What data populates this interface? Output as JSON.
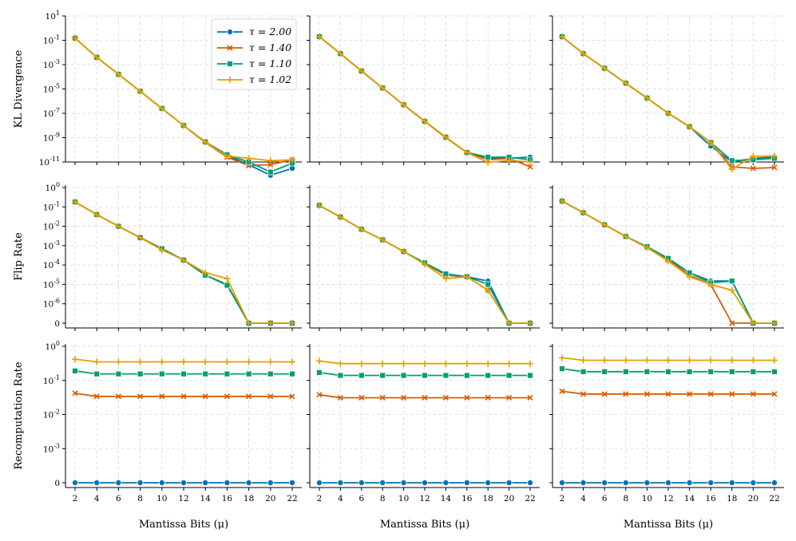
{
  "chart_data": {
    "type": "line",
    "layout": "3x3 grid of subplots (rows share y-axis label, columns share x-axis label)",
    "grid": true,
    "legend_placement": "top-right of top-left subplot",
    "x": [
      2,
      4,
      6,
      8,
      10,
      12,
      14,
      16,
      18,
      20,
      22
    ],
    "xlabel": "Mantissa Bits (μ)",
    "series_styles": [
      {
        "name": "τ = 2.00",
        "color": "#0072B2",
        "marker": "circle"
      },
      {
        "name": "τ = 1.40",
        "color": "#D55E00",
        "marker": "x"
      },
      {
        "name": "τ = 1.10",
        "color": "#009E73",
        "marker": "square"
      },
      {
        "name": "τ = 1.02",
        "color": "#E69F00",
        "marker": "plus"
      }
    ],
    "rows": [
      {
        "ylabel": "KL Divergence",
        "scale": "log",
        "ylim": [
          1e-11,
          10
        ],
        "yticks": [
          {
            "v": 10,
            "b": "10",
            "e": "1"
          },
          {
            "v": 0.1,
            "b": "10",
            "e": "-1"
          },
          {
            "v": 0.001,
            "b": "10",
            "e": "-3"
          },
          {
            "v": 1e-05,
            "b": "10",
            "e": "-5"
          },
          {
            "v": 1e-07,
            "b": "10",
            "e": "-7"
          },
          {
            "v": 1e-09,
            "b": "10",
            "e": "-9"
          },
          {
            "v": 1e-11,
            "b": "10",
            "e": "-11"
          }
        ],
        "panels": [
          {
            "series": [
              {
                "name": "τ = 2.00",
                "values": [
                  0.15,
                  0.004,
                  0.00016,
                  6.5e-06,
                  2.5e-07,
                  1e-08,
                  4e-10,
                  3.5e-11,
                  6e-12,
                  8e-13,
                  3e-12
                ]
              },
              {
                "name": "τ = 1.40",
                "values": [
                  0.15,
                  0.004,
                  0.00016,
                  6.5e-06,
                  2.5e-07,
                  1e-08,
                  4e-10,
                  2.5e-11,
                  5e-12,
                  6e-12,
                  1.5e-11
                ]
              },
              {
                "name": "τ = 1.10",
                "values": [
                  0.15,
                  0.004,
                  0.00016,
                  6.5e-06,
                  2.5e-07,
                  1e-08,
                  4.5e-10,
                  4e-11,
                  1e-11,
                  1.5e-12,
                  8e-12
                ]
              },
              {
                "name": "τ = 1.02",
                "values": [
                  0.15,
                  0.004,
                  0.00016,
                  6.5e-06,
                  2.5e-07,
                  1e-08,
                  4.5e-10,
                  3e-11,
                  2e-11,
                  1.3e-11,
                  1.5e-11
                ]
              }
            ]
          },
          {
            "series": [
              {
                "name": "τ = 2.00",
                "values": [
                  0.2,
                  0.008,
                  0.0003,
                  1.2e-05,
                  5e-07,
                  2.2e-08,
                  1e-09,
                  6e-11,
                  2e-11,
                  2e-11,
                  2.5e-11
                ]
              },
              {
                "name": "τ = 1.40",
                "values": [
                  0.2,
                  0.008,
                  0.0003,
                  1.2e-05,
                  5e-07,
                  2.2e-08,
                  1e-09,
                  6e-11,
                  1.5e-11,
                  2e-11,
                  4e-12
                ]
              },
              {
                "name": "τ = 1.10",
                "values": [
                  0.2,
                  0.008,
                  0.0003,
                  1.2e-05,
                  5e-07,
                  2.2e-08,
                  1.1e-09,
                  6e-11,
                  2.5e-11,
                  2.5e-11,
                  1.5e-11
                ]
              },
              {
                "name": "τ = 1.02",
                "values": [
                  0.2,
                  0.008,
                  0.0003,
                  1.2e-05,
                  5e-07,
                  2.2e-08,
                  1.1e-09,
                  6e-11,
                  9e-12,
                  1.4e-11,
                  1e-11
                ]
              }
            ]
          },
          {
            "series": [
              {
                "name": "τ = 2.00",
                "values": [
                  0.2,
                  0.008,
                  0.0005,
                  3e-05,
                  1.8e-06,
                  1e-07,
                  8e-09,
                  2e-10,
                  1e-11,
                  2e-11,
                  2.5e-11
                ]
              },
              {
                "name": "τ = 1.40",
                "values": [
                  0.2,
                  0.008,
                  0.0005,
                  3e-05,
                  1.8e-06,
                  1e-07,
                  8e-09,
                  4e-10,
                  4e-12,
                  3e-12,
                  3.5e-12
                ]
              },
              {
                "name": "τ = 1.10",
                "values": [
                  0.2,
                  0.008,
                  0.0005,
                  3e-05,
                  1.8e-06,
                  1e-07,
                  8e-09,
                  4e-10,
                  1.3e-11,
                  1.5e-11,
                  2e-11
                ]
              },
              {
                "name": "τ = 1.02",
                "values": [
                  0.2,
                  0.008,
                  0.0005,
                  3e-05,
                  1.8e-06,
                  1e-07,
                  8e-09,
                  4e-10,
                  2.5e-12,
                  3e-11,
                  3e-11
                ]
              }
            ]
          }
        ]
      },
      {
        "ylabel": "Flip Rate",
        "scale": "symlog",
        "ylim": [
          0,
          1
        ],
        "yticks": [
          {
            "v": 1,
            "b": "10",
            "e": "0"
          },
          {
            "v": 0.1,
            "b": "10",
            "e": "-1"
          },
          {
            "v": 0.01,
            "b": "10",
            "e": "-2"
          },
          {
            "v": 0.001,
            "b": "10",
            "e": "-3"
          },
          {
            "v": 0.0001,
            "b": "10",
            "e": "-4"
          },
          {
            "v": 1e-05,
            "b": "10",
            "e": "-5"
          },
          {
            "v": 1e-06,
            "b": "10",
            "e": "-6"
          },
          {
            "v": 0,
            "b": "0",
            "e": ""
          }
        ],
        "panels": [
          {
            "series": [
              {
                "name": "τ = 2.00",
                "values": [
                  0.18,
                  0.04,
                  0.01,
                  0.0026,
                  0.0007,
                  0.00018,
                  3e-05,
                  1e-05,
                  0,
                  0,
                  0
                ]
              },
              {
                "name": "τ = 1.40",
                "values": [
                  0.18,
                  0.04,
                  0.01,
                  0.0026,
                  0.0007,
                  0.00018,
                  3e-05,
                  1e-05,
                  0,
                  0,
                  0
                ]
              },
              {
                "name": "τ = 1.10",
                "values": [
                  0.18,
                  0.04,
                  0.01,
                  0.0026,
                  0.0007,
                  0.00018,
                  3e-05,
                  9e-06,
                  0,
                  0,
                  0
                ]
              },
              {
                "name": "τ = 1.02",
                "values": [
                  0.18,
                  0.04,
                  0.01,
                  0.0026,
                  0.0006,
                  0.00018,
                  4e-05,
                  2e-05,
                  0,
                  0,
                  0
                ]
              }
            ]
          },
          {
            "series": [
              {
                "name": "τ = 2.00",
                "values": [
                  0.12,
                  0.03,
                  0.007,
                  0.002,
                  0.0005,
                  0.00012,
                  3e-05,
                  2.5e-05,
                  1.5e-05,
                  0,
                  0
                ]
              },
              {
                "name": "τ = 1.40",
                "values": [
                  0.12,
                  0.03,
                  0.007,
                  0.002,
                  0.0005,
                  0.00012,
                  3e-05,
                  2.5e-05,
                  5e-06,
                  0,
                  0
                ]
              },
              {
                "name": "τ = 1.10",
                "values": [
                  0.12,
                  0.03,
                  0.007,
                  0.002,
                  0.0005,
                  0.00013,
                  3.5e-05,
                  2.5e-05,
                  1e-05,
                  0,
                  0
                ]
              },
              {
                "name": "τ = 1.02",
                "values": [
                  0.12,
                  0.03,
                  0.007,
                  0.002,
                  0.0005,
                  0.00011,
                  2e-05,
                  2.5e-05,
                  5e-06,
                  0,
                  0
                ]
              }
            ]
          },
          {
            "series": [
              {
                "name": "τ = 2.00",
                "values": [
                  0.2,
                  0.05,
                  0.012,
                  0.003,
                  0.0008,
                  0.0002,
                  4e-05,
                  1.5e-05,
                  1.5e-05,
                  0,
                  0
                ]
              },
              {
                "name": "τ = 1.40",
                "values": [
                  0.2,
                  0.05,
                  0.012,
                  0.003,
                  0.0008,
                  0.00018,
                  3e-05,
                  1e-05,
                  0,
                  0,
                  0
                ]
              },
              {
                "name": "τ = 1.10",
                "values": [
                  0.2,
                  0.05,
                  0.012,
                  0.003,
                  0.0009,
                  0.00022,
                  4e-05,
                  1.2e-05,
                  1.5e-05,
                  0,
                  0
                ]
              },
              {
                "name": "τ = 1.02",
                "values": [
                  0.2,
                  0.05,
                  0.012,
                  0.003,
                  0.0008,
                  0.00016,
                  2.5e-05,
                  1e-05,
                  5e-06,
                  0,
                  0
                ]
              }
            ]
          }
        ]
      },
      {
        "ylabel": "Recomputation Rate",
        "scale": "symlog",
        "ylim": [
          0,
          1
        ],
        "yticks": [
          {
            "v": 1,
            "b": "10",
            "e": "0"
          },
          {
            "v": 0.1,
            "b": "10",
            "e": "-1"
          },
          {
            "v": 0.01,
            "b": "10",
            "e": "-2"
          },
          {
            "v": 0.001,
            "b": "10",
            "e": "-3"
          },
          {
            "v": 0,
            "b": "0",
            "e": ""
          }
        ],
        "panels": [
          {
            "series": [
              {
                "name": "τ = 2.00",
                "values": [
                  0,
                  0,
                  0,
                  0,
                  0,
                  0,
                  0,
                  0,
                  0,
                  0,
                  0
                ]
              },
              {
                "name": "τ = 1.40",
                "values": [
                  0.042,
                  0.034,
                  0.034,
                  0.034,
                  0.034,
                  0.034,
                  0.034,
                  0.034,
                  0.034,
                  0.034,
                  0.034
                ]
              },
              {
                "name": "τ = 1.10",
                "values": [
                  0.19,
                  0.155,
                  0.155,
                  0.155,
                  0.155,
                  0.155,
                  0.155,
                  0.155,
                  0.155,
                  0.155,
                  0.155
                ]
              },
              {
                "name": "τ = 1.02",
                "values": [
                  0.42,
                  0.35,
                  0.35,
                  0.35,
                  0.35,
                  0.35,
                  0.35,
                  0.35,
                  0.35,
                  0.35,
                  0.35
                ]
              }
            ]
          },
          {
            "series": [
              {
                "name": "τ = 2.00",
                "values": [
                  0,
                  0,
                  0,
                  0,
                  0,
                  0,
                  0,
                  0,
                  0,
                  0,
                  0
                ]
              },
              {
                "name": "τ = 1.40",
                "values": [
                  0.038,
                  0.031,
                  0.031,
                  0.031,
                  0.031,
                  0.031,
                  0.031,
                  0.031,
                  0.031,
                  0.031,
                  0.031
                ]
              },
              {
                "name": "τ = 1.10",
                "values": [
                  0.17,
                  0.14,
                  0.14,
                  0.14,
                  0.14,
                  0.14,
                  0.14,
                  0.14,
                  0.14,
                  0.14,
                  0.14
                ]
              },
              {
                "name": "τ = 1.02",
                "values": [
                  0.37,
                  0.31,
                  0.31,
                  0.31,
                  0.31,
                  0.31,
                  0.31,
                  0.31,
                  0.31,
                  0.31,
                  0.31
                ]
              }
            ]
          },
          {
            "series": [
              {
                "name": "τ = 2.00",
                "values": [
                  0,
                  0,
                  0,
                  0,
                  0,
                  0,
                  0,
                  0,
                  0,
                  0,
                  0
                ]
              },
              {
                "name": "τ = 1.40",
                "values": [
                  0.048,
                  0.04,
                  0.04,
                  0.04,
                  0.04,
                  0.04,
                  0.04,
                  0.04,
                  0.04,
                  0.04,
                  0.04
                ]
              },
              {
                "name": "τ = 1.10",
                "values": [
                  0.22,
                  0.18,
                  0.18,
                  0.18,
                  0.18,
                  0.18,
                  0.18,
                  0.18,
                  0.18,
                  0.18,
                  0.18
                ]
              },
              {
                "name": "τ = 1.02",
                "values": [
                  0.46,
                  0.39,
                  0.39,
                  0.39,
                  0.39,
                  0.39,
                  0.39,
                  0.39,
                  0.39,
                  0.39,
                  0.39
                ]
              }
            ]
          }
        ]
      }
    ]
  }
}
